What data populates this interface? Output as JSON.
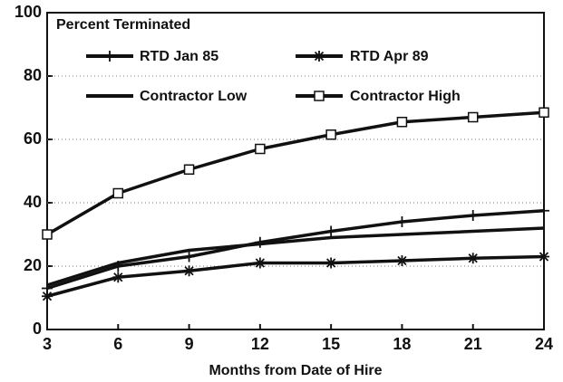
{
  "chart_data": {
    "type": "line",
    "legend_title": "Percent Terminated",
    "x_label": "Months from Date of Hire",
    "x": [
      3,
      6,
      9,
      12,
      15,
      18,
      21,
      24
    ],
    "xlim": [
      3,
      24
    ],
    "xticks": [
      3,
      6,
      9,
      12,
      15,
      18,
      21,
      24
    ],
    "ylim": [
      0,
      100
    ],
    "yticks": [
      0,
      20,
      40,
      60,
      80,
      100
    ],
    "grid": true,
    "series": [
      {
        "name": "RTD Jan 85",
        "color": "#111111",
        "marker": "plus",
        "values": [
          13,
          20,
          23,
          27.5,
          31,
          34,
          36,
          37.5
        ]
      },
      {
        "name": "RTD Apr 89",
        "color": "#111111",
        "marker": "asterisk",
        "values": [
          10.5,
          16.5,
          18.5,
          21,
          21,
          21.7,
          22.5,
          23
        ]
      },
      {
        "name": "Contractor Low",
        "color": "#111111",
        "marker": "none",
        "values": [
          14,
          21,
          25,
          27,
          29,
          30,
          31,
          32
        ]
      },
      {
        "name": "Contractor High",
        "color": "#111111",
        "marker": "square",
        "values": [
          30,
          43,
          50.5,
          57,
          61.5,
          65.5,
          67,
          68.5
        ]
      }
    ]
  }
}
